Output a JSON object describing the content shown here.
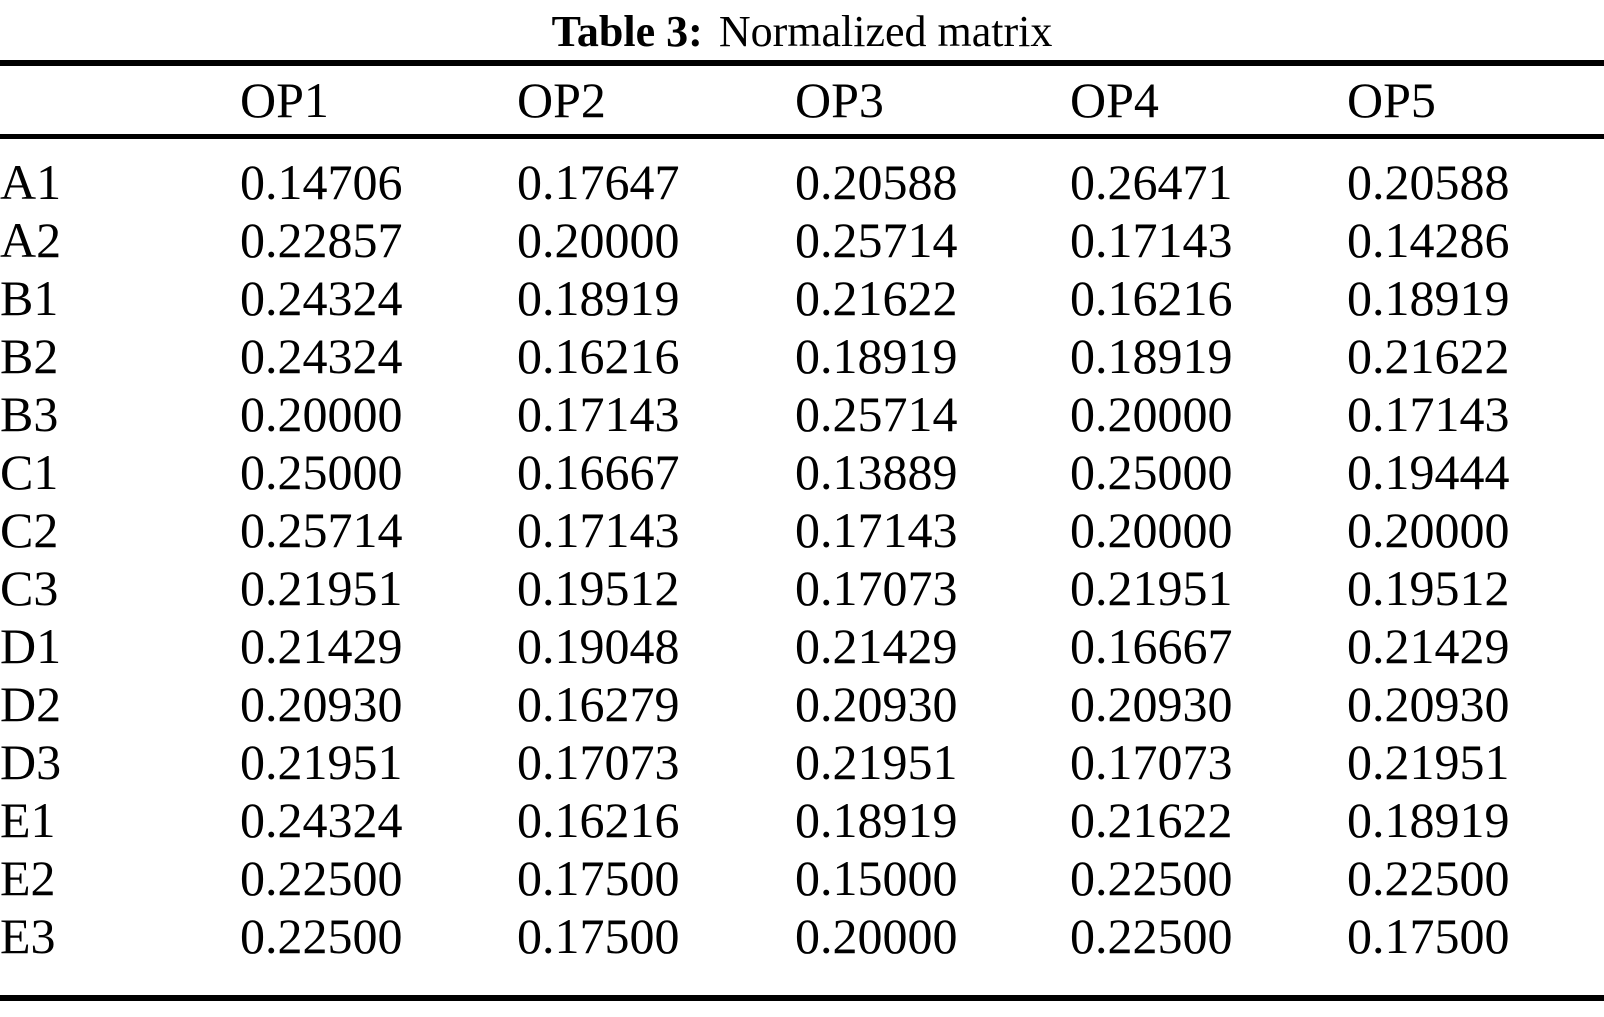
{
  "title": {
    "prefix": "Table 3:",
    "text": "Normalized matrix"
  },
  "table": {
    "header": [
      "OP1",
      "OP2",
      "OP3",
      "OP4",
      "OP5"
    ],
    "rows": [
      {
        "label": "A1",
        "values": [
          "0.14706",
          "0.17647",
          "0.20588",
          "0.26471",
          "0.20588"
        ]
      },
      {
        "label": "A2",
        "values": [
          "0.22857",
          "0.20000",
          "0.25714",
          "0.17143",
          "0.14286"
        ]
      },
      {
        "label": "B1",
        "values": [
          "0.24324",
          "0.18919",
          "0.21622",
          "0.16216",
          "0.18919"
        ]
      },
      {
        "label": "B2",
        "values": [
          "0.24324",
          "0.16216",
          "0.18919",
          "0.18919",
          "0.21622"
        ]
      },
      {
        "label": "B3",
        "values": [
          "0.20000",
          "0.17143",
          "0.25714",
          "0.20000",
          "0.17143"
        ]
      },
      {
        "label": "C1",
        "values": [
          "0.25000",
          "0.16667",
          "0.13889",
          "0.25000",
          "0.19444"
        ]
      },
      {
        "label": "C2",
        "values": [
          "0.25714",
          "0.17143",
          "0.17143",
          "0.20000",
          "0.20000"
        ]
      },
      {
        "label": "C3",
        "values": [
          "0.21951",
          "0.19512",
          "0.17073",
          "0.21951",
          "0.19512"
        ]
      },
      {
        "label": "D1",
        "values": [
          "0.21429",
          "0.19048",
          "0.21429",
          "0.16667",
          "0.21429"
        ]
      },
      {
        "label": "D2",
        "values": [
          "0.20930",
          "0.16279",
          "0.20930",
          "0.20930",
          "0.20930"
        ]
      },
      {
        "label": "D3",
        "values": [
          "0.21951",
          "0.17073",
          "0.21951",
          "0.17073",
          "0.21951"
        ]
      },
      {
        "label": "E1",
        "values": [
          "0.24324",
          "0.16216",
          "0.18919",
          "0.21622",
          "0.18919"
        ]
      },
      {
        "label": "E2",
        "values": [
          "0.22500",
          "0.17500",
          "0.15000",
          "0.22500",
          "0.22500"
        ]
      },
      {
        "label": "E3",
        "values": [
          "0.22500",
          "0.17500",
          "0.20000",
          "0.22500",
          "0.17500"
        ]
      }
    ],
    "colors": {
      "text": "#000000",
      "background": "#ffffff",
      "rule": "#000000"
    }
  }
}
